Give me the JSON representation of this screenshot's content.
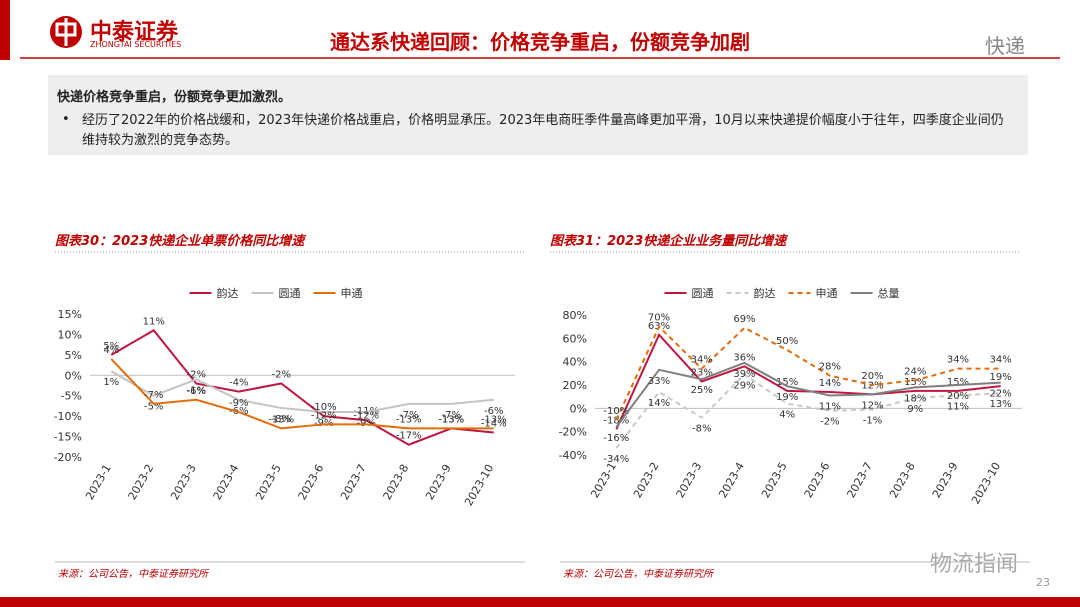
{
  "header": {
    "logo_name": "中泰证券",
    "logo_en": "ZHONGTAI SECURITIES",
    "title": "通达系快递回顾：价格竞争重启，份额竞争加剧",
    "section": "快递"
  },
  "summary": {
    "heading": "快递价格竞争重启，份额竞争更加激烈。",
    "bullet": "经历了2022年的价格战缓和，2023年快递价格战重启，价格明显承压。2023年电商旺季件量高峰更加平滑，10月以来快递提价幅度小于往年，四季度企业间仍维持较为激烈的竞争态势。"
  },
  "chart_data": [
    {
      "type": "line",
      "title": "图表30：2023快递企业单票价格同比增速",
      "legend": "top",
      "categories": [
        "2023-1",
        "2023-2",
        "2023-3",
        "2023-4",
        "2023-5",
        "2023-6",
        "2023-7",
        "2023-8",
        "2023-9",
        "2023-10"
      ],
      "series": [
        {
          "name": "韵达",
          "color": "#c0163f",
          "dash": false,
          "values": [
            5,
            11,
            -2,
            -4,
            -2,
            -10,
            -11,
            -17,
            -13,
            -14
          ],
          "value_labels": [
            "5%",
            "11%",
            "-2%",
            "-4%",
            "-2%",
            "-10%",
            "-11%",
            "-17%",
            "-13%",
            "-14%"
          ]
        },
        {
          "name": "圆通",
          "color": "#c4c4c4",
          "dash": false,
          "values": [
            1,
            -5,
            -1,
            -6,
            -8,
            -9,
            -9,
            -7,
            -7,
            -6
          ],
          "value_labels": [
            "1%",
            "-5%",
            "-1%",
            "-6%",
            "-8%",
            "-9%",
            "-9%",
            "-7%",
            "-7%",
            "-6%"
          ]
        },
        {
          "name": "申通",
          "color": "#e36c0a",
          "dash": false,
          "values": [
            4,
            -7,
            -6,
            -9,
            -13,
            -12,
            -12,
            -13,
            -13,
            -13
          ],
          "value_labels": [
            "4%",
            "-7%",
            "-6%",
            "-9%",
            "-13%",
            "-12%",
            "-12%",
            "-13%",
            "-13%",
            "-13%"
          ]
        }
      ],
      "ylim": [
        -20,
        15
      ],
      "yticks": [
        {
          "value": -20,
          "label": "-20%"
        },
        {
          "value": -15,
          "label": "-15%"
        },
        {
          "value": -10,
          "label": "-10%"
        },
        {
          "value": -5,
          "label": "-5%"
        },
        {
          "value": 0,
          "label": "0%"
        },
        {
          "value": 5,
          "label": "5%"
        },
        {
          "value": 10,
          "label": "10%"
        },
        {
          "value": 15,
          "label": "15%"
        }
      ]
    },
    {
      "type": "line",
      "title": "图表31：2023快递企业业务量同比增速",
      "legend": "top",
      "categories": [
        "2023-1",
        "2023-2",
        "2023-3",
        "2023-4",
        "2023-5",
        "2023-6",
        "2023-7",
        "2023-8",
        "2023-9",
        "2023-10"
      ],
      "series": [
        {
          "name": "圆通",
          "color": "#c0163f",
          "dash": false,
          "values": [
            -18,
            63,
            23,
            36,
            15,
            14,
            12,
            15,
            15,
            19
          ],
          "value_labels": [
            "-18%",
            "63%",
            "23%",
            "36%",
            "15%",
            "14%",
            "12%",
            "15%",
            "15%",
            "19%"
          ]
        },
        {
          "name": "韵达",
          "color": "#c8c8c8",
          "dash": true,
          "values": [
            -34,
            14,
            -8,
            29,
            4,
            -2,
            -1,
            9,
            11,
            13
          ],
          "value_labels": [
            "-34%",
            "14%",
            "-8%",
            "29%",
            "4%",
            "-2%",
            "-1%",
            "9%",
            "11%",
            "13%"
          ]
        },
        {
          "name": "申通",
          "color": "#e36c0a",
          "dash": true,
          "values": [
            -10,
            70,
            34,
            69,
            50,
            28,
            20,
            24,
            34,
            34
          ],
          "value_labels": [
            "-10%",
            "70%",
            "34%",
            "69%",
            "50%",
            "28%",
            "20%",
            "24%",
            "34%",
            "34%"
          ]
        },
        {
          "name": "总量",
          "color": "#7f7f7f",
          "dash": false,
          "values": [
            -16,
            33,
            25,
            39,
            19,
            11,
            12,
            18,
            20,
            22
          ],
          "value_labels": [
            "-16%",
            "33%",
            "25%",
            "39%",
            "19%",
            "11%",
            "12%",
            "18%",
            "20%",
            "22%"
          ]
        }
      ],
      "ylim": [
        -40,
        80
      ],
      "yticks": [
        {
          "value": -40,
          "label": "-40%"
        },
        {
          "value": -20,
          "label": "-20%"
        },
        {
          "value": 0,
          "label": "0%"
        },
        {
          "value": 20,
          "label": "20%"
        },
        {
          "value": 40,
          "label": "40%"
        },
        {
          "value": 60,
          "label": "60%"
        },
        {
          "value": 80,
          "label": "80%"
        }
      ]
    }
  ],
  "sources": [
    "来源：公司公告，中泰证券研究所",
    "来源：公司公告，中泰证券研究所"
  ],
  "watermark": "物流指闻",
  "page_number": "23"
}
